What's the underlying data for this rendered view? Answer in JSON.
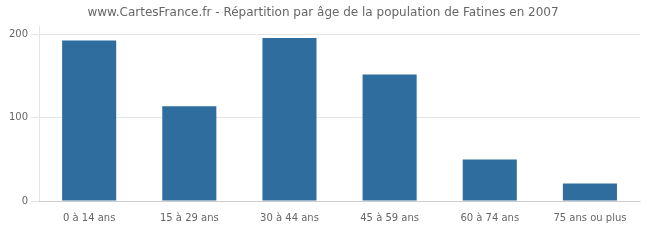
{
  "chart_data": {
    "type": "bar",
    "title": "www.CartesFrance.fr - Répartition par âge de la population de Fatines en 2007",
    "categories": [
      "0 à 14 ans",
      "15 à 29 ans",
      "30 à 44 ans",
      "45 à 59 ans",
      "60 à 74 ans",
      "75 ans ou plus"
    ],
    "values": [
      193,
      114,
      196,
      152,
      50,
      21
    ],
    "color": "#2e6d9e",
    "ylim": [
      0,
      210
    ],
    "yticks": [
      0,
      100,
      200
    ],
    "grid": true
  }
}
